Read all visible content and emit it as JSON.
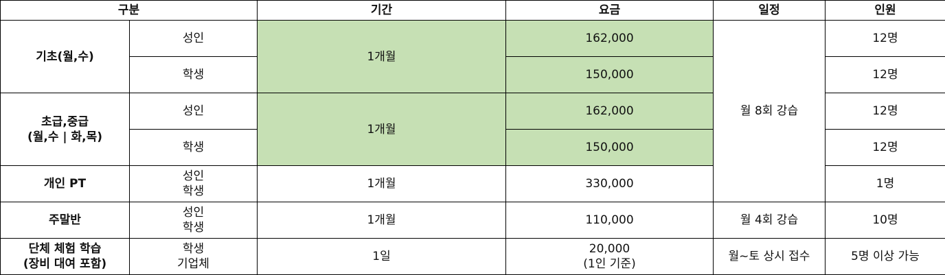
{
  "header": {
    "category": "구분",
    "period": "기간",
    "fee": "요금",
    "schedule": "일정",
    "capacity": "인원"
  },
  "rows": {
    "basic": {
      "title": "기초(월,수)",
      "adult": "성인",
      "student": "학생",
      "period": "1개월",
      "fee_adult": "162,000",
      "fee_student": "150,000",
      "cap_adult": "12명",
      "cap_student": "12명"
    },
    "mid": {
      "title_line1": "초급,중급",
      "title_line2": "(월,수 | 화,목)",
      "adult": "성인",
      "student": "학생",
      "period": "1개월",
      "fee_adult": "162,000",
      "fee_student": "150,000",
      "cap_adult": "12명",
      "cap_student": "12명"
    },
    "schedule_shared": "월 8회 강습",
    "pt": {
      "title": "개인 PT",
      "target_line1": "성인",
      "target_line2": "학생",
      "period": "1개월",
      "fee": "330,000",
      "capacity": "1명"
    },
    "weekend": {
      "title": "주말반",
      "target_line1": "성인",
      "target_line2": "학생",
      "period": "1개월",
      "fee": "110,000",
      "schedule": "월 4회 강습",
      "capacity": "10명"
    },
    "group": {
      "title_line1": "단체 체험 학습",
      "title_line2": "(장비 대여 포함)",
      "target_line1": "학생",
      "target_line2": "기업체",
      "period": "1일",
      "fee_line1": "20,000",
      "fee_line2": "(1인 기준)",
      "schedule": "월~토 상시 접수",
      "capacity": "5명 이상 가능"
    }
  },
  "colors": {
    "highlight": "#c6e0b4",
    "border": "#000000"
  }
}
